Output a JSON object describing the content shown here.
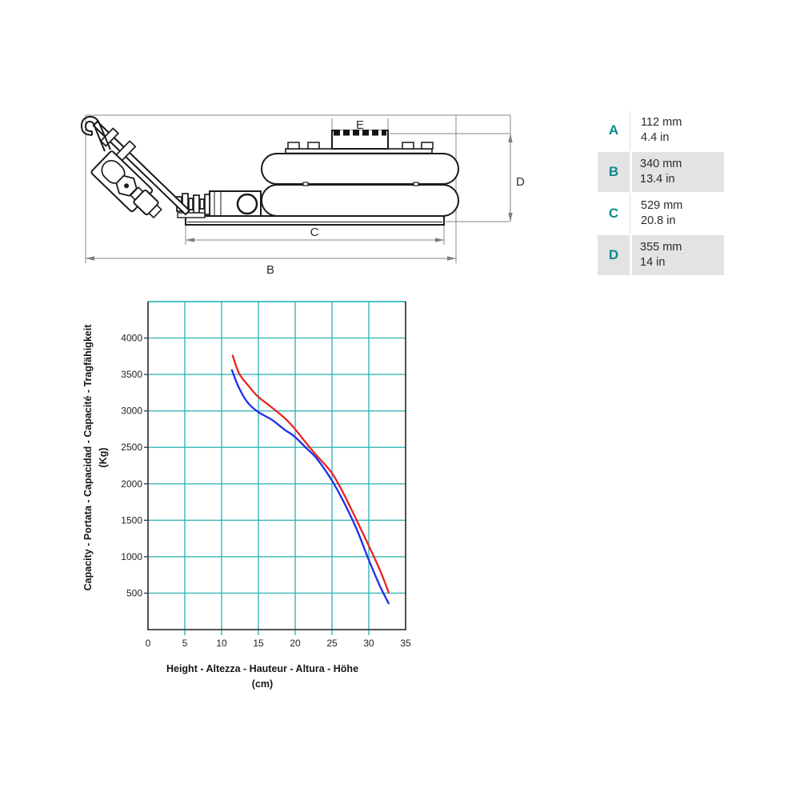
{
  "drawing": {
    "dim_labels": {
      "b": "B",
      "c": "C",
      "d": "D",
      "e": "E"
    }
  },
  "spec_table": {
    "accent_color": "#0c8a8e",
    "alt_row_color": "#e3e3e3",
    "rows": [
      {
        "letter": "A",
        "mm": "112 mm",
        "inch": "4.4 in"
      },
      {
        "letter": "B",
        "mm": "340 mm",
        "inch": "13.4 in"
      },
      {
        "letter": "C",
        "mm": "529 mm",
        "inch": "20.8 in"
      },
      {
        "letter": "D",
        "mm": "355 mm",
        "inch": "14 in"
      }
    ]
  },
  "chart_data": {
    "type": "line",
    "title": "",
    "xlabel": "Height - Altezza - Hauteur - Altura - Höhe",
    "xlabel_unit": "(cm)",
    "ylabel": "Capacity - Portata - Capacidad - Capacité - Tragfähigkeit",
    "ylabel_unit": "(Kg)",
    "xlim": [
      0,
      35
    ],
    "ylim": [
      0,
      4500
    ],
    "x_ticks": [
      0,
      5,
      10,
      15,
      20,
      25,
      30,
      35
    ],
    "y_ticks": [
      500,
      1000,
      1500,
      2000,
      2500,
      3000,
      3500,
      4000
    ],
    "grid": true,
    "grid_color": "#36b7b7",
    "axis_color": "#3d3d3d",
    "legend": "none",
    "series": [
      {
        "name": "capacity-upper",
        "color": "#e8251f",
        "points": [
          [
            11.5,
            3760
          ],
          [
            12.4,
            3510
          ],
          [
            13.7,
            3340
          ],
          [
            14.9,
            3200
          ],
          [
            16.8,
            3050
          ],
          [
            18.6,
            2900
          ],
          [
            19.9,
            2760
          ],
          [
            21.4,
            2570
          ],
          [
            22.9,
            2390
          ],
          [
            24.9,
            2160
          ],
          [
            26.5,
            1880
          ],
          [
            28.3,
            1510
          ],
          [
            29.9,
            1170
          ],
          [
            31.5,
            820
          ],
          [
            32.7,
            510
          ]
        ]
      },
      {
        "name": "capacity-lower",
        "color": "#1f2ee8",
        "points": [
          [
            11.4,
            3560
          ],
          [
            12.3,
            3330
          ],
          [
            13.5,
            3120
          ],
          [
            14.9,
            2990
          ],
          [
            16.8,
            2880
          ],
          [
            18.6,
            2740
          ],
          [
            19.9,
            2650
          ],
          [
            21.4,
            2500
          ],
          [
            22.9,
            2350
          ],
          [
            24.9,
            2060
          ],
          [
            26.5,
            1770
          ],
          [
            28.3,
            1390
          ],
          [
            29.9,
            980
          ],
          [
            31.5,
            600
          ],
          [
            32.7,
            360
          ]
        ]
      }
    ]
  }
}
